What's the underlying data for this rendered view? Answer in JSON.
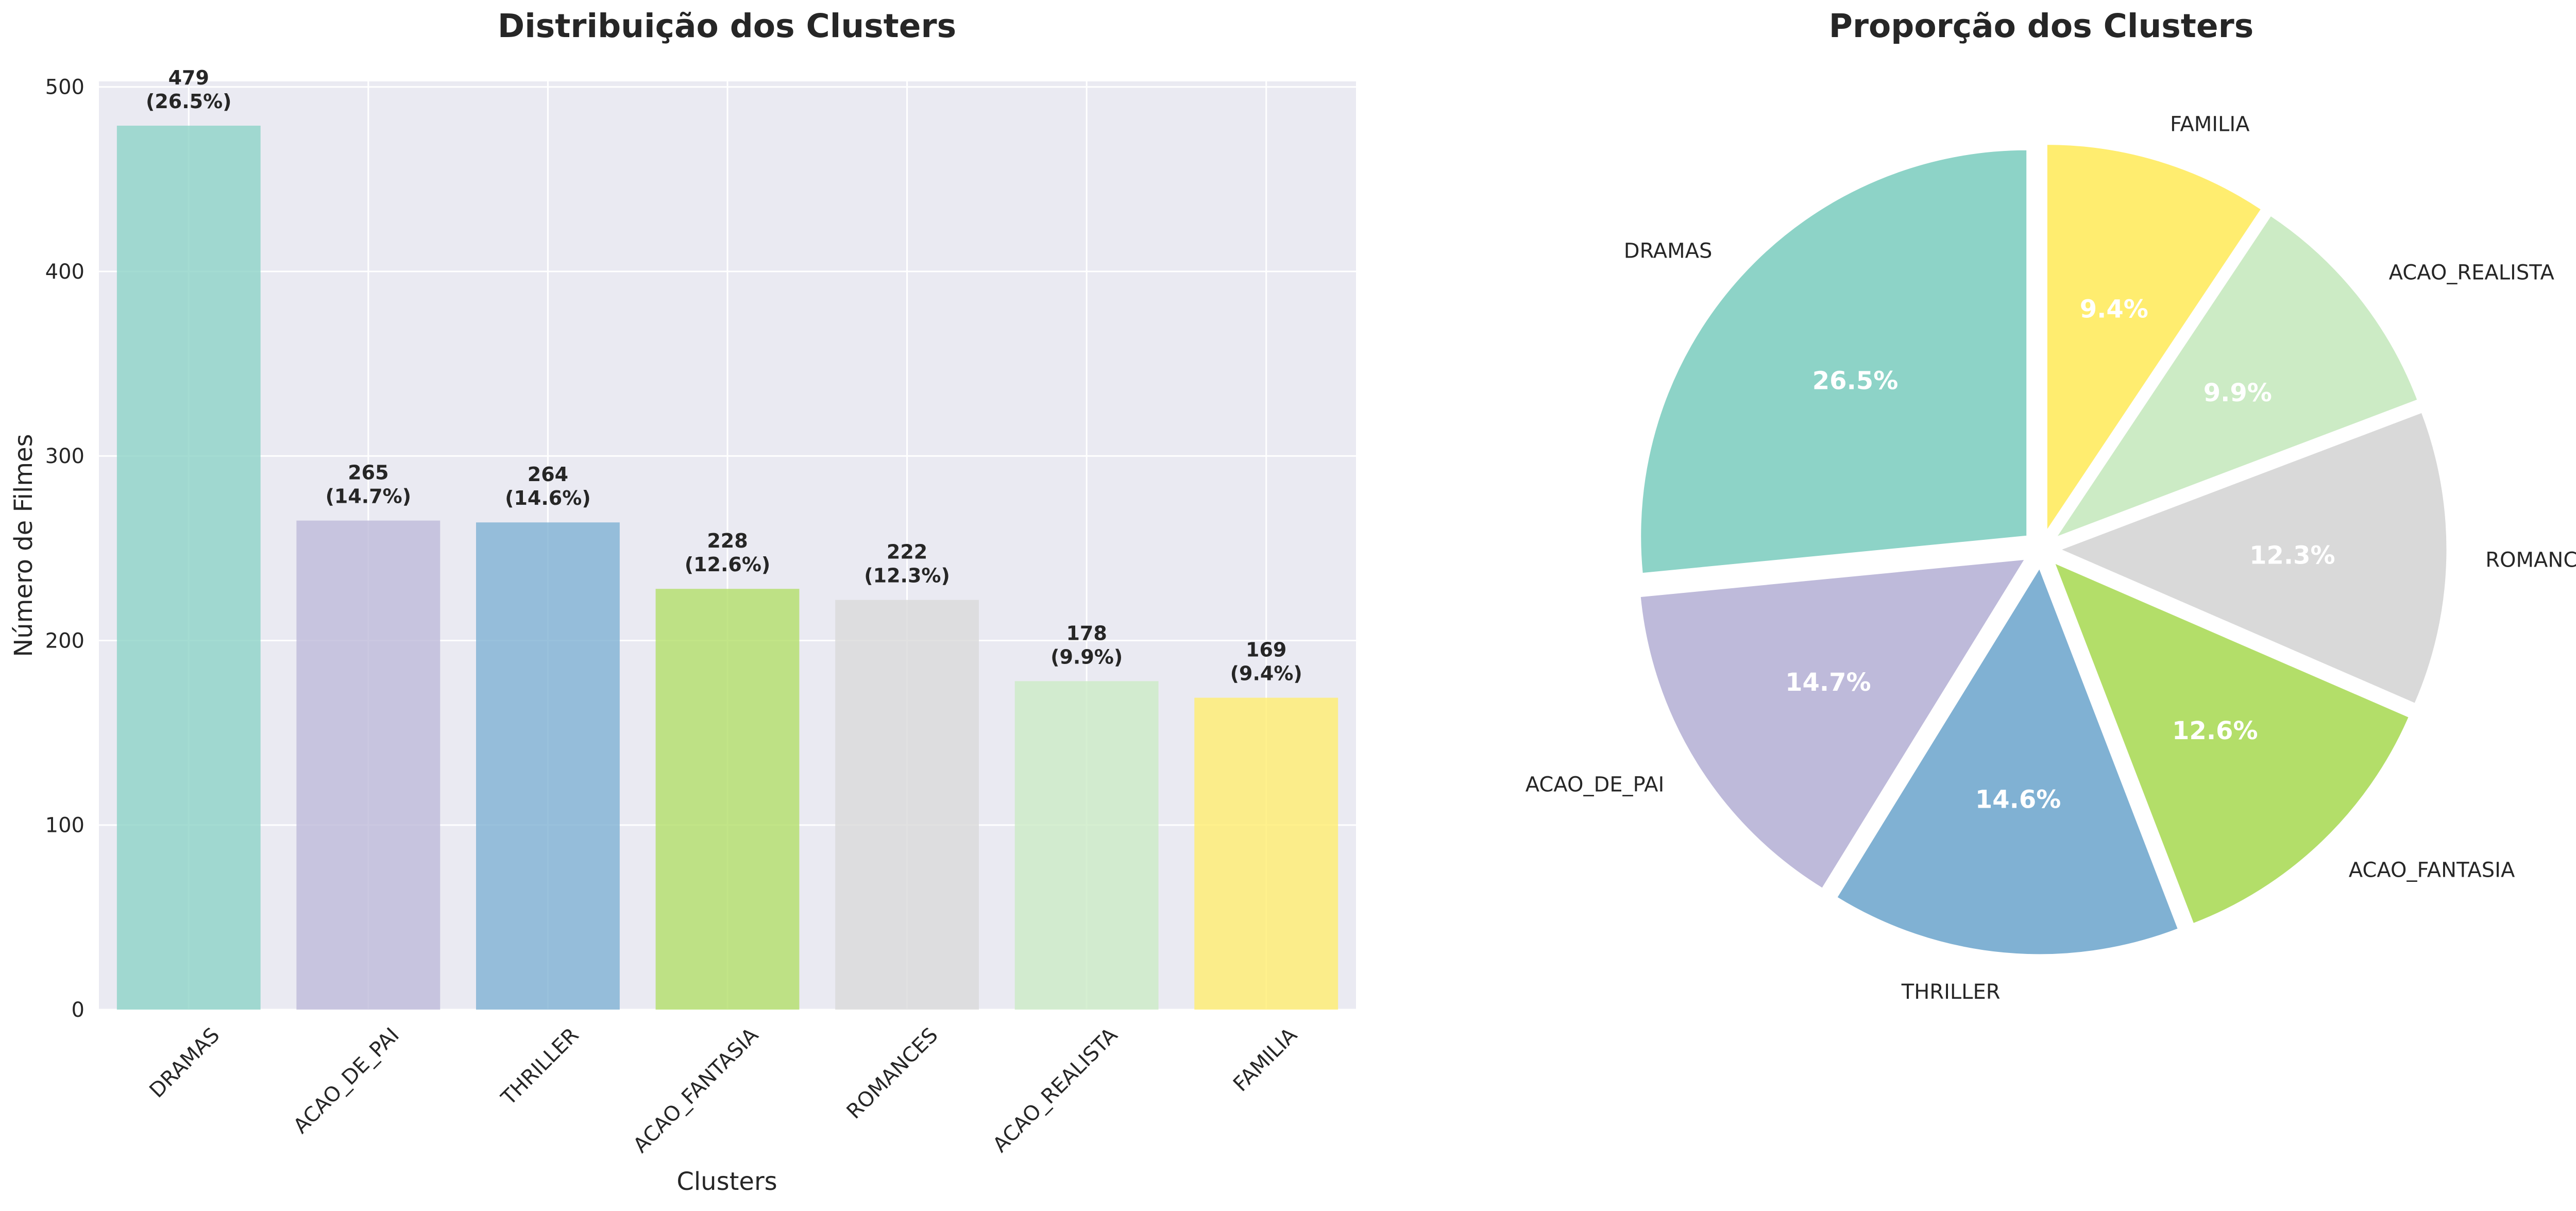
{
  "chart_data": [
    {
      "type": "bar",
      "title": "Distribuição dos Clusters",
      "xlabel": "Clusters",
      "ylabel": "Número de Filmes",
      "categories": [
        "DRAMAS",
        "ACAO_DE_PAI",
        "THRILLER",
        "ACAO_FANTASIA",
        "ROMANCES",
        "ACAO_REALISTA",
        "FAMILIA"
      ],
      "values": [
        479,
        265,
        264,
        228,
        222,
        178,
        169
      ],
      "value_labels": [
        "479",
        "265",
        "264",
        "228",
        "222",
        "178",
        "169"
      ],
      "percent_labels": [
        "(26.5%)",
        "(14.7%)",
        "(14.6%)",
        "(12.6%)",
        "(12.3%)",
        "(9.9%)",
        "(9.4%)"
      ],
      "ylim": [
        0,
        503
      ],
      "yticks": [
        0,
        100,
        200,
        300,
        400,
        500
      ],
      "ytick_labels": [
        "0",
        "100",
        "200",
        "300",
        "400",
        "500"
      ],
      "grid": true,
      "tick_rotation_deg": 45,
      "colors": [
        "#8dd3c7",
        "#bebada",
        "#80b1d3",
        "#b3de69",
        "#d9d9d9",
        "#ccebc5",
        "#ffed6f"
      ]
    },
    {
      "type": "pie",
      "title": "Proporção dos Clusters",
      "labels": [
        "DRAMAS",
        "ACAO_DE_PAI",
        "THRILLER",
        "ACAO_FANTASIA",
        "ROMANCES",
        "ACAO_REALISTA",
        "FAMILIA"
      ],
      "values": [
        479,
        265,
        264,
        228,
        222,
        178,
        169
      ],
      "percent_labels": [
        "26.5%",
        "14.7%",
        "14.6%",
        "12.6%",
        "12.3%",
        "9.9%",
        "9.4%"
      ],
      "start_angle_deg": 90,
      "direction": "counterclockwise",
      "explode": 0.05,
      "colors": [
        "#8dd3c7",
        "#bebada",
        "#80b1d3",
        "#b3de69",
        "#d9d9d9",
        "#ccebc5",
        "#ffed6f"
      ]
    }
  ]
}
